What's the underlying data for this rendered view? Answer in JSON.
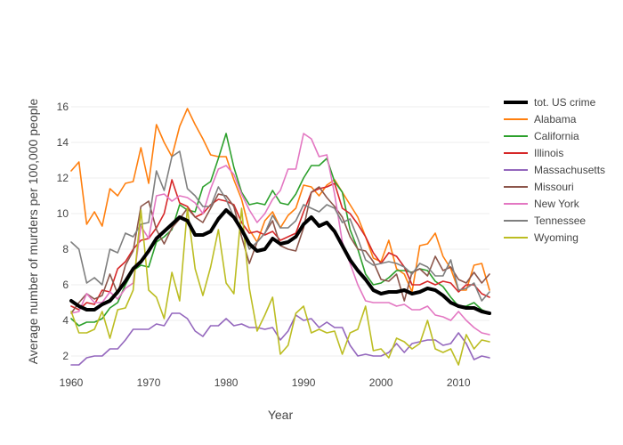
{
  "chart_data": {
    "type": "line",
    "xlabel": "Year",
    "ylabel": "Average number of murders per 100,000 people",
    "xlim": [
      1960,
      2014
    ],
    "ylim": [
      1,
      17
    ],
    "x_ticks": [
      1960,
      1970,
      1980,
      1990,
      2000,
      2010
    ],
    "y_ticks": [
      2,
      4,
      6,
      8,
      10,
      12,
      14,
      16
    ],
    "grid": "horizontal",
    "legend_position": "right",
    "x": [
      1960,
      1961,
      1962,
      1963,
      1964,
      1965,
      1966,
      1967,
      1968,
      1969,
      1970,
      1971,
      1972,
      1973,
      1974,
      1975,
      1976,
      1977,
      1978,
      1979,
      1980,
      1981,
      1982,
      1983,
      1984,
      1985,
      1986,
      1987,
      1988,
      1989,
      1990,
      1991,
      1992,
      1993,
      1994,
      1995,
      1996,
      1997,
      1998,
      1999,
      2000,
      2001,
      2002,
      2003,
      2004,
      2005,
      2006,
      2007,
      2008,
      2009,
      2010,
      2011,
      2012,
      2013,
      2014
    ],
    "series": [
      {
        "name": "tot. US crime",
        "color": "#000000",
        "width": 4,
        "values": [
          5.1,
          4.8,
          4.6,
          4.6,
          4.9,
          5.1,
          5.6,
          6.2,
          6.9,
          7.3,
          7.9,
          8.6,
          9.0,
          9.4,
          9.8,
          9.6,
          8.8,
          8.8,
          9.0,
          9.7,
          10.2,
          9.8,
          9.1,
          8.3,
          7.9,
          8.0,
          8.6,
          8.3,
          8.4,
          8.7,
          9.4,
          9.8,
          9.3,
          9.5,
          9.0,
          8.2,
          7.4,
          6.8,
          6.3,
          5.7,
          5.5,
          5.6,
          5.6,
          5.7,
          5.5,
          5.6,
          5.8,
          5.7,
          5.4,
          5.0,
          4.8,
          4.7,
          4.7,
          4.5,
          4.4
        ]
      },
      {
        "name": "Alabama",
        "color": "#ff7f0e",
        "width": 1.6,
        "values": [
          12.4,
          12.9,
          9.4,
          10.1,
          9.3,
          11.4,
          11.0,
          11.7,
          11.8,
          13.7,
          11.7,
          15.0,
          14.0,
          13.2,
          14.9,
          15.9,
          15.0,
          14.2,
          13.3,
          13.2,
          13.2,
          11.9,
          10.8,
          9.1,
          8.4,
          9.6,
          10.1,
          9.2,
          9.9,
          10.3,
          11.6,
          11.5,
          11.0,
          11.6,
          11.9,
          11.2,
          10.5,
          9.8,
          8.7,
          7.5,
          7.3,
          8.5,
          6.9,
          6.6,
          5.6,
          8.2,
          8.3,
          8.9,
          7.6,
          6.9,
          5.7,
          5.7,
          7.1,
          7.2,
          5.7
        ]
      },
      {
        "name": "California",
        "color": "#2ca02c",
        "width": 1.6,
        "values": [
          4.1,
          3.7,
          3.9,
          3.9,
          4.1,
          4.7,
          5.0,
          6.0,
          6.8,
          7.1,
          7.0,
          8.4,
          8.7,
          9.1,
          10.5,
          10.2,
          10.1,
          11.5,
          11.8,
          13.1,
          14.5,
          12.6,
          11.2,
          10.5,
          10.6,
          10.5,
          11.3,
          10.6,
          10.5,
          11.1,
          12.0,
          12.7,
          12.7,
          13.1,
          11.8,
          11.2,
          9.1,
          8.0,
          6.6,
          6.0,
          6.1,
          6.4,
          6.8,
          6.8,
          6.7,
          6.9,
          6.8,
          6.2,
          5.9,
          5.3,
          4.8,
          4.8,
          5.0,
          4.6,
          4.4
        ]
      },
      {
        "name": "Illinois",
        "color": "#d62728",
        "width": 1.6,
        "values": [
          4.8,
          4.6,
          5.0,
          4.9,
          5.7,
          5.6,
          6.9,
          7.3,
          8.0,
          8.5,
          8.6,
          9.2,
          10.0,
          11.9,
          10.6,
          10.4,
          9.8,
          10.0,
          10.5,
          10.8,
          10.7,
          10.5,
          9.5,
          8.9,
          9.0,
          8.8,
          9.0,
          8.5,
          8.7,
          8.9,
          10.1,
          11.2,
          11.4,
          11.5,
          11.7,
          10.3,
          10.0,
          9.4,
          8.7,
          7.8,
          7.2,
          7.8,
          7.6,
          7.0,
          6.0,
          6.0,
          6.2,
          6.0,
          6.2,
          6.1,
          5.6,
          6.0,
          6.0,
          5.5,
          5.3
        ]
      },
      {
        "name": "Massachusetts",
        "color": "#9467bd",
        "width": 1.6,
        "values": [
          1.5,
          1.5,
          1.9,
          2.0,
          2.0,
          2.4,
          2.4,
          2.9,
          3.5,
          3.5,
          3.5,
          3.8,
          3.7,
          4.4,
          4.4,
          4.1,
          3.4,
          3.1,
          3.7,
          3.7,
          4.1,
          3.7,
          3.8,
          3.6,
          3.6,
          3.5,
          3.6,
          2.9,
          3.4,
          4.3,
          4.0,
          4.1,
          3.6,
          3.9,
          3.6,
          3.6,
          2.6,
          2.0,
          2.1,
          2.0,
          2.0,
          2.2,
          2.7,
          2.2,
          2.7,
          2.8,
          2.9,
          2.9,
          2.6,
          2.7,
          3.3,
          2.7,
          1.8,
          2.0,
          1.9
        ]
      },
      {
        "name": "Missouri",
        "color": "#8c564b",
        "width": 1.6,
        "values": [
          4.4,
          5.0,
          5.5,
          5.2,
          5.4,
          6.6,
          5.5,
          7.1,
          7.9,
          10.4,
          10.7,
          9.1,
          8.3,
          9.2,
          9.7,
          10.3,
          9.8,
          9.5,
          10.3,
          11.1,
          11.0,
          10.4,
          8.7,
          7.2,
          8.4,
          8.9,
          9.6,
          8.2,
          8.0,
          7.9,
          9.2,
          11.2,
          11.5,
          10.9,
          10.4,
          9.8,
          8.7,
          8.0,
          7.9,
          7.3,
          6.3,
          6.2,
          6.6,
          5.1,
          6.7,
          6.9,
          6.5,
          7.6,
          6.8,
          7.0,
          6.3,
          6.1,
          6.7,
          6.1,
          6.6
        ]
      },
      {
        "name": "New York",
        "color": "#e377c2",
        "width": 1.6,
        "values": [
          4.4,
          4.5,
          5.5,
          5.0,
          5.0,
          5.6,
          5.2,
          5.8,
          6.1,
          9.3,
          8.6,
          11.0,
          11.1,
          10.7,
          11.0,
          10.9,
          10.6,
          10.0,
          11.4,
          12.5,
          12.7,
          12.2,
          11.1,
          10.2,
          9.5,
          10.0,
          10.8,
          11.3,
          12.5,
          12.5,
          14.5,
          14.2,
          13.2,
          13.3,
          11.1,
          8.4,
          7.2,
          6.0,
          5.1,
          5.0,
          5.0,
          5.0,
          4.8,
          4.9,
          4.6,
          4.6,
          4.8,
          4.3,
          4.2,
          4.0,
          4.5,
          4.0,
          3.6,
          3.3,
          3.2
        ]
      },
      {
        "name": "Tennessee",
        "color": "#7f7f7f",
        "width": 1.6,
        "values": [
          8.4,
          8.0,
          6.1,
          6.4,
          6.0,
          8.0,
          7.8,
          8.9,
          8.7,
          9.4,
          9.5,
          12.4,
          11.3,
          13.2,
          13.5,
          11.4,
          11.0,
          10.4,
          10.4,
          11.5,
          10.8,
          9.8,
          9.1,
          8.0,
          8.4,
          8.9,
          9.9,
          9.2,
          9.2,
          9.6,
          10.5,
          10.3,
          10.1,
          10.5,
          10.3,
          9.5,
          9.7,
          8.6,
          7.4,
          7.1,
          7.2,
          7.3,
          7.2,
          7.0,
          6.6,
          7.2,
          7.0,
          6.5,
          6.5,
          7.4,
          5.7,
          5.8,
          6.1,
          5.1,
          5.6
        ]
      },
      {
        "name": "Wyoming",
        "color": "#bcbd22",
        "width": 1.6,
        "values": [
          4.5,
          3.3,
          3.3,
          3.5,
          4.5,
          3.0,
          4.6,
          4.7,
          5.7,
          10.2,
          5.7,
          5.3,
          4.1,
          6.7,
          5.1,
          10.3,
          6.9,
          5.4,
          7.0,
          9.1,
          6.1,
          5.5,
          10.3,
          5.8,
          3.4,
          4.3,
          5.3,
          2.1,
          2.6,
          4.4,
          4.8,
          3.3,
          3.5,
          3.3,
          3.4,
          2.1,
          3.3,
          3.5,
          4.8,
          2.3,
          2.4,
          1.9,
          3.0,
          2.8,
          2.4,
          2.7,
          4.0,
          2.4,
          2.2,
          2.4,
          1.5,
          3.2,
          2.4,
          2.9,
          2.8
        ]
      }
    ]
  }
}
